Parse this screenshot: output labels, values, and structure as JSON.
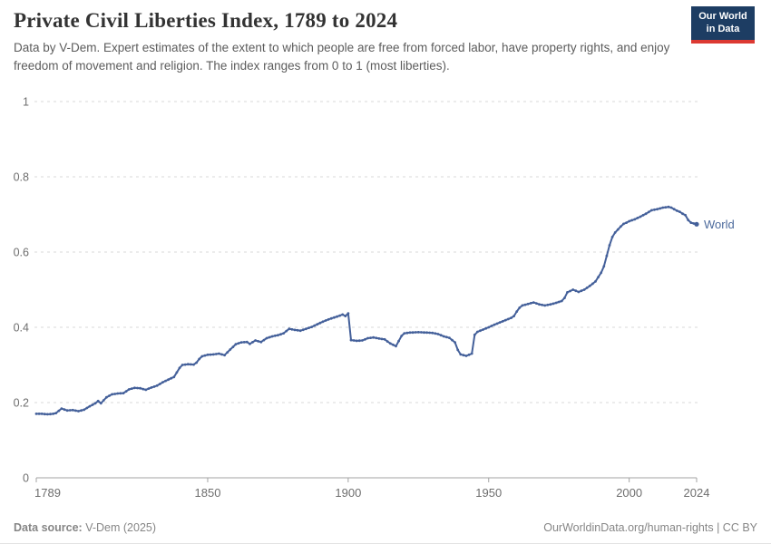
{
  "header": {
    "title": "Private Civil Liberties Index, 1789 to 2024",
    "subtitle": "Data by V-Dem. Expert estimates of the extent to which people are free from forced labor, have property rights, and enjoy freedom of movement and religion. The index ranges from 0 to 1 (most liberties).",
    "logo": {
      "line1": "Our World",
      "line2": "in Data"
    }
  },
  "footer": {
    "source_label": "Data source:",
    "source_value": " V-Dem (2025)",
    "credit": "OurWorldinData.org/human-rights | CC BY"
  },
  "chart_data": {
    "type": "line",
    "title": "Private Civil Liberties Index, 1789 to 2024",
    "xlabel": "",
    "ylabel": "",
    "xlim": [
      1789,
      2024
    ],
    "ylim": [
      0,
      1
    ],
    "x_ticks": [
      1789,
      1850,
      1900,
      1950,
      2000,
      2024
    ],
    "y_ticks": [
      0,
      0.2,
      0.4,
      0.6,
      0.8,
      1
    ],
    "y_tick_labels": [
      "0",
      "0.2",
      "0.4",
      "0.6",
      "0.8",
      "1"
    ],
    "grid": "horizontal-dashed",
    "legend_position": "end-of-line-label",
    "colors": {
      "line": "#44609a",
      "series_label": "#4c6a9c",
      "grid": "#d9d9d9",
      "axis": "#a3a3a3",
      "tick_text": "#6e6e6e"
    },
    "series": [
      {
        "name": "World",
        "points": [
          [
            1789,
            0.17
          ],
          [
            1791,
            0.17
          ],
          [
            1793,
            0.169
          ],
          [
            1795,
            0.17
          ],
          [
            1796,
            0.172
          ],
          [
            1798,
            0.184
          ],
          [
            1800,
            0.179
          ],
          [
            1802,
            0.18
          ],
          [
            1804,
            0.177
          ],
          [
            1806,
            0.181
          ],
          [
            1808,
            0.19
          ],
          [
            1810,
            0.198
          ],
          [
            1811,
            0.204
          ],
          [
            1812,
            0.198
          ],
          [
            1814,
            0.214
          ],
          [
            1816,
            0.222
          ],
          [
            1818,
            0.224
          ],
          [
            1820,
            0.225
          ],
          [
            1822,
            0.235
          ],
          [
            1824,
            0.239
          ],
          [
            1826,
            0.238
          ],
          [
            1828,
            0.234
          ],
          [
            1830,
            0.24
          ],
          [
            1832,
            0.245
          ],
          [
            1834,
            0.254
          ],
          [
            1836,
            0.261
          ],
          [
            1838,
            0.268
          ],
          [
            1840,
            0.292
          ],
          [
            1841,
            0.3
          ],
          [
            1843,
            0.302
          ],
          [
            1845,
            0.301
          ],
          [
            1846,
            0.306
          ],
          [
            1847,
            0.316
          ],
          [
            1848,
            0.323
          ],
          [
            1850,
            0.327
          ],
          [
            1852,
            0.328
          ],
          [
            1854,
            0.33
          ],
          [
            1856,
            0.326
          ],
          [
            1858,
            0.341
          ],
          [
            1860,
            0.355
          ],
          [
            1862,
            0.36
          ],
          [
            1864,
            0.361
          ],
          [
            1865,
            0.356
          ],
          [
            1867,
            0.365
          ],
          [
            1869,
            0.361
          ],
          [
            1871,
            0.371
          ],
          [
            1873,
            0.376
          ],
          [
            1875,
            0.379
          ],
          [
            1877,
            0.384
          ],
          [
            1879,
            0.396
          ],
          [
            1881,
            0.393
          ],
          [
            1883,
            0.391
          ],
          [
            1885,
            0.396
          ],
          [
            1887,
            0.401
          ],
          [
            1889,
            0.408
          ],
          [
            1891,
            0.415
          ],
          [
            1893,
            0.421
          ],
          [
            1895,
            0.426
          ],
          [
            1897,
            0.431
          ],
          [
            1898,
            0.434
          ],
          [
            1899,
            0.43
          ],
          [
            1900,
            0.437
          ],
          [
            1901,
            0.366
          ],
          [
            1903,
            0.364
          ],
          [
            1905,
            0.365
          ],
          [
            1907,
            0.371
          ],
          [
            1909,
            0.373
          ],
          [
            1911,
            0.37
          ],
          [
            1913,
            0.368
          ],
          [
            1915,
            0.357
          ],
          [
            1917,
            0.35
          ],
          [
            1919,
            0.377
          ],
          [
            1920,
            0.384
          ],
          [
            1922,
            0.386
          ],
          [
            1925,
            0.387
          ],
          [
            1928,
            0.386
          ],
          [
            1930,
            0.385
          ],
          [
            1932,
            0.382
          ],
          [
            1934,
            0.376
          ],
          [
            1936,
            0.372
          ],
          [
            1938,
            0.36
          ],
          [
            1939,
            0.34
          ],
          [
            1940,
            0.328
          ],
          [
            1942,
            0.324
          ],
          [
            1944,
            0.33
          ],
          [
            1945,
            0.38
          ],
          [
            1946,
            0.388
          ],
          [
            1948,
            0.394
          ],
          [
            1950,
            0.4
          ],
          [
            1952,
            0.407
          ],
          [
            1954,
            0.413
          ],
          [
            1956,
            0.419
          ],
          [
            1958,
            0.425
          ],
          [
            1959,
            0.43
          ],
          [
            1960,
            0.442
          ],
          [
            1961,
            0.452
          ],
          [
            1962,
            0.458
          ],
          [
            1964,
            0.462
          ],
          [
            1966,
            0.466
          ],
          [
            1968,
            0.461
          ],
          [
            1970,
            0.458
          ],
          [
            1972,
            0.461
          ],
          [
            1974,
            0.465
          ],
          [
            1976,
            0.47
          ],
          [
            1977,
            0.478
          ],
          [
            1978,
            0.493
          ],
          [
            1980,
            0.5
          ],
          [
            1982,
            0.494
          ],
          [
            1984,
            0.5
          ],
          [
            1986,
            0.51
          ],
          [
            1988,
            0.522
          ],
          [
            1990,
            0.545
          ],
          [
            1991,
            0.562
          ],
          [
            1992,
            0.59
          ],
          [
            1993,
            0.618
          ],
          [
            1994,
            0.64
          ],
          [
            1995,
            0.652
          ],
          [
            1996,
            0.66
          ],
          [
            1997,
            0.668
          ],
          [
            1998,
            0.675
          ],
          [
            1999,
            0.678
          ],
          [
            2000,
            0.682
          ],
          [
            2002,
            0.687
          ],
          [
            2004,
            0.694
          ],
          [
            2006,
            0.702
          ],
          [
            2008,
            0.711
          ],
          [
            2010,
            0.714
          ],
          [
            2012,
            0.718
          ],
          [
            2014,
            0.72
          ],
          [
            2015,
            0.718
          ],
          [
            2016,
            0.714
          ],
          [
            2017,
            0.71
          ],
          [
            2018,
            0.707
          ],
          [
            2019,
            0.702
          ],
          [
            2020,
            0.698
          ],
          [
            2021,
            0.685
          ],
          [
            2022,
            0.678
          ],
          [
            2023,
            0.676
          ],
          [
            2024,
            0.674
          ]
        ]
      }
    ]
  }
}
